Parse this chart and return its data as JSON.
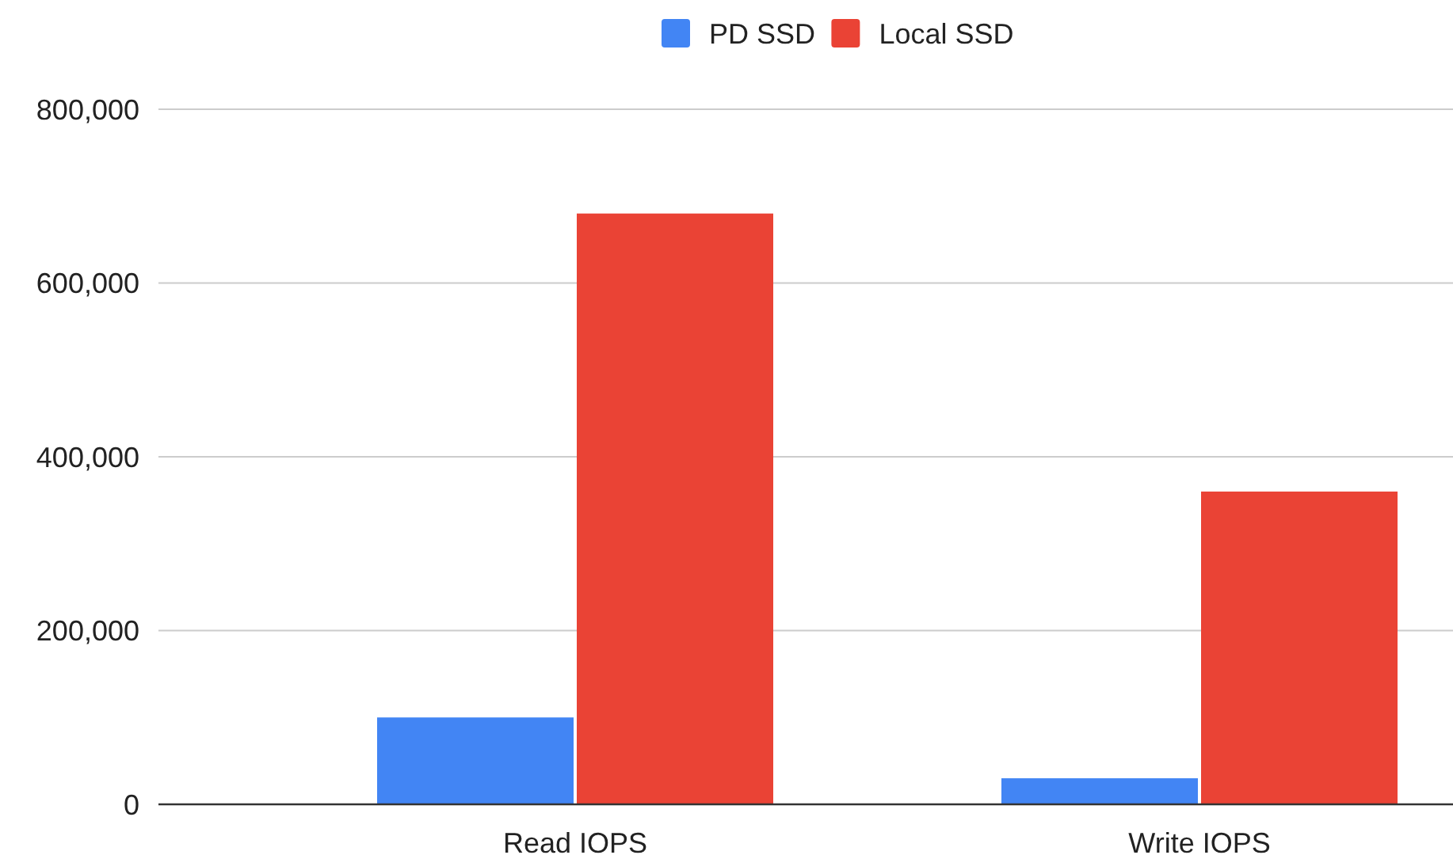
{
  "chart_data": {
    "type": "bar",
    "categories": [
      "Read IOPS",
      "Write IOPS"
    ],
    "series": [
      {
        "name": "PD SSD",
        "color": "#4285f4",
        "values": [
          100000,
          30000
        ]
      },
      {
        "name": "Local SSD",
        "color": "#ea4335",
        "values": [
          680000,
          360000
        ]
      }
    ],
    "ylim": [
      0,
      800000
    ],
    "yticks": [
      {
        "value": 0,
        "label": "0"
      },
      {
        "value": 200000,
        "label": "200,000"
      },
      {
        "value": 400000,
        "label": "400,000"
      },
      {
        "value": 600000,
        "label": "600,000"
      },
      {
        "value": 800000,
        "label": "800,000"
      }
    ],
    "grid": "y",
    "legend": "top"
  }
}
